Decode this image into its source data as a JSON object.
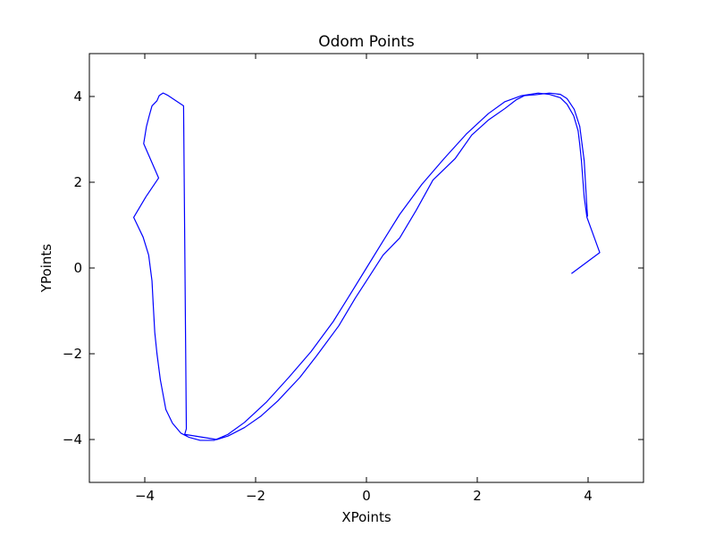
{
  "chart_data": {
    "type": "line",
    "title": "Odom Points",
    "xlabel": "XPoints",
    "ylabel": "YPoints",
    "xlim": [
      -5,
      5
    ],
    "ylim": [
      -5,
      5
    ],
    "xticks": [
      -4,
      -2,
      0,
      2,
      4
    ],
    "yticks": [
      -4,
      -2,
      0,
      2,
      4
    ],
    "xtick_labels": [
      "−4",
      "−2",
      "0",
      "2",
      "4"
    ],
    "ytick_labels": [
      "−4",
      "−2",
      "0",
      "2",
      "4"
    ],
    "grid": false,
    "series": [
      {
        "color": "#0000ff",
        "x": [
          3.7,
          4.21,
          3.98,
          3.93,
          3.88,
          3.85,
          3.82,
          3.74,
          3.62,
          3.5,
          3.3,
          3.1,
          2.8,
          2.5,
          2.2,
          1.8,
          1.4,
          1.0,
          0.6,
          0.3,
          0.0,
          -0.3,
          -0.6,
          -1.0,
          -1.4,
          -1.8,
          -2.2,
          -2.5,
          -2.75,
          -3.0,
          -3.2,
          -3.35,
          -3.5,
          -3.62,
          -3.72,
          -3.78,
          -3.82,
          -3.85,
          -3.87,
          -3.93,
          -4.03,
          -4.2,
          -3.98,
          -3.75,
          -4.02,
          -3.97,
          -3.92,
          -3.87,
          -3.78,
          -3.74,
          -3.67,
          -3.65,
          -3.59,
          -3.3,
          -3.25,
          -3.28,
          -2.7,
          -2.5,
          -2.2,
          -1.9,
          -1.6,
          -1.2,
          -0.9,
          -0.5,
          -0.2,
          0.0,
          0.3,
          0.6,
          0.9,
          1.2,
          1.6,
          1.9,
          2.2,
          2.5,
          2.7,
          2.85,
          3.05,
          3.3,
          3.5,
          3.62,
          3.75,
          3.85,
          3.93,
          3.97,
          3.99
        ],
        "y": [
          -0.13,
          0.36,
          1.18,
          1.65,
          2.5,
          2.88,
          3.2,
          3.55,
          3.82,
          3.97,
          4.05,
          4.08,
          4.02,
          3.88,
          3.6,
          3.12,
          2.55,
          1.95,
          1.25,
          0.63,
          0.0,
          -0.63,
          -1.25,
          -1.95,
          -2.55,
          -3.12,
          -3.6,
          -3.88,
          -4.02,
          -4.02,
          -3.95,
          -3.85,
          -3.62,
          -3.3,
          -2.6,
          -2.0,
          -1.5,
          -0.8,
          -0.3,
          0.3,
          0.72,
          1.18,
          1.66,
          2.1,
          2.9,
          3.3,
          3.55,
          3.78,
          3.9,
          4.02,
          4.08,
          4.07,
          4.03,
          3.78,
          -3.75,
          -3.88,
          -4.0,
          -3.92,
          -3.72,
          -3.45,
          -3.1,
          -2.55,
          -2.05,
          -1.35,
          -0.7,
          -0.3,
          0.3,
          0.7,
          1.35,
          2.05,
          2.55,
          3.1,
          3.45,
          3.72,
          3.92,
          4.02,
          4.04,
          4.08,
          4.05,
          3.95,
          3.7,
          3.3,
          2.5,
          1.6,
          1.2
        ]
      }
    ]
  }
}
